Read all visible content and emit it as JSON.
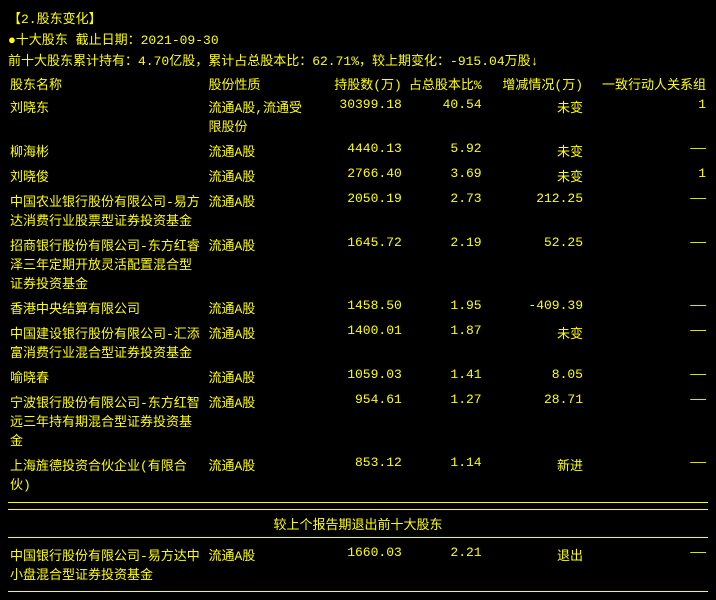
{
  "section_title": "【2.股东变化】",
  "subheader": {
    "label": "●十大股东 截止日期：",
    "date": "2021-09-30"
  },
  "summary": "前十大股东累计持有：4.70亿股，累计占总股本比：62.71%，较上期变化：-915.04万股↓",
  "columns": {
    "name": "股东名称",
    "nature": "股份性质",
    "shares": "持股数(万)",
    "pct": "占总股本比%",
    "change": "增减情况(万)",
    "group": "一致行动人关系组"
  },
  "rows": [
    {
      "name": "刘晓东",
      "nature": "流通A股,流通受限股份",
      "shares": "30399.18",
      "pct": "40.54",
      "change": "未变",
      "group": "1"
    },
    {
      "name": "柳海彬",
      "nature": "流通A股",
      "shares": "4440.13",
      "pct": "5.92",
      "change": "未变",
      "group": "——"
    },
    {
      "name": "刘晓俊",
      "nature": "流通A股",
      "shares": "2766.40",
      "pct": "3.69",
      "change": "未变",
      "group": "1"
    },
    {
      "name": "中国农业银行股份有限公司-易方达消费行业股票型证券投资基金",
      "nature": "流通A股",
      "shares": "2050.19",
      "pct": "2.73",
      "change": "212.25",
      "group": "——"
    },
    {
      "name": "招商银行股份有限公司-东方红睿泽三年定期开放灵活配置混合型证券投资基金",
      "nature": "流通A股",
      "shares": "1645.72",
      "pct": "2.19",
      "change": "52.25",
      "group": "——"
    },
    {
      "name": "香港中央结算有限公司",
      "nature": "流通A股",
      "shares": "1458.50",
      "pct": "1.95",
      "change": "-409.39",
      "group": "——"
    },
    {
      "name": "中国建设银行股份有限公司-汇添富消费行业混合型证券投资基金",
      "nature": "流通A股",
      "shares": "1400.01",
      "pct": "1.87",
      "change": "未变",
      "group": "——"
    },
    {
      "name": "喻晓春",
      "nature": "流通A股",
      "shares": "1059.03",
      "pct": "1.41",
      "change": "8.05",
      "group": "——"
    },
    {
      "name": "宁波银行股份有限公司-东方红智远三年持有期混合型证券投资基金",
      "nature": "流通A股",
      "shares": "954.61",
      "pct": "1.27",
      "change": "28.71",
      "group": "——"
    },
    {
      "name": "上海旌德投资合伙企业(有限合伙)",
      "nature": "流通A股",
      "shares": "853.12",
      "pct": "1.14",
      "change": "新进",
      "group": "——"
    }
  ],
  "exit_header": "较上个报告期退出前十大股东",
  "exit_rows": [
    {
      "name": "中国银行股份有限公司-易方达中小盘混合型证券投资基金",
      "nature": "流通A股",
      "shares": "1660.03",
      "pct": "2.21",
      "change": "退出",
      "group": "——"
    }
  ]
}
